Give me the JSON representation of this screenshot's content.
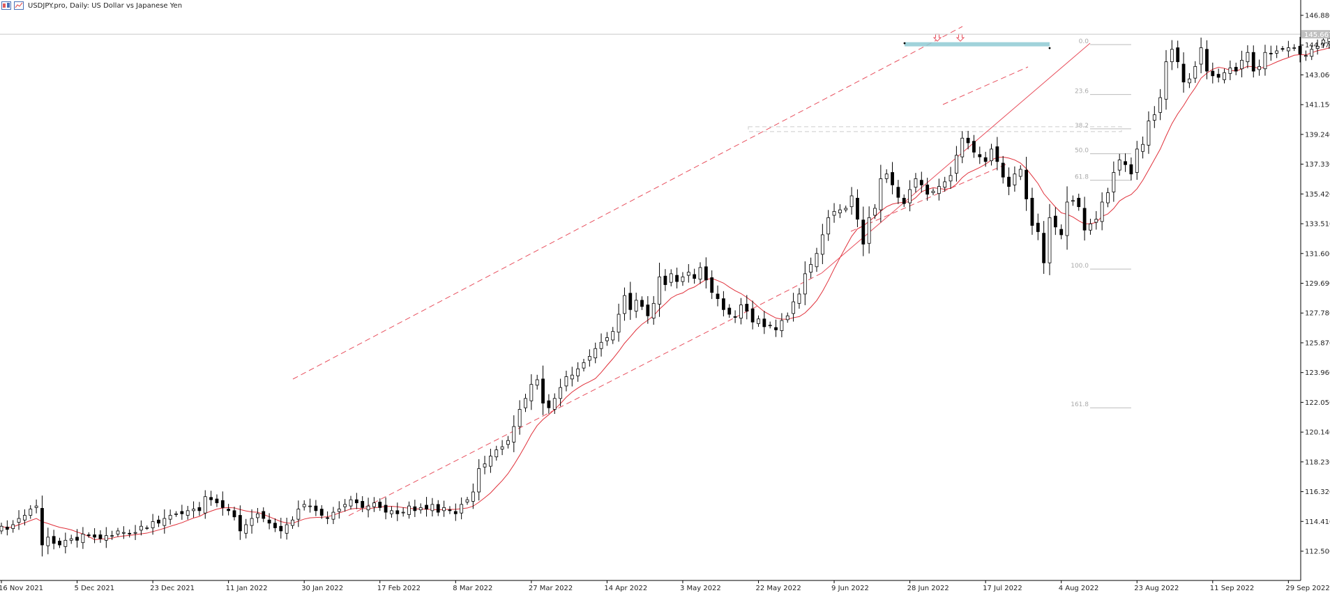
{
  "header": {
    "symbol": "USDJPY.pro",
    "timeframe": "Daily",
    "description": "US Dollar vs Japanese Yen",
    "title": "USDJPY.pro, Daily:  US Dollar vs Japanese Yen"
  },
  "colors": {
    "bull_candle": "#ffffff",
    "bear_candle": "#000000",
    "moving_average": "#e0303a",
    "channel": "#e8505e",
    "fib": "#bbbbbb",
    "resistance_zone": "#8fcad3",
    "arrow": "#e8505e"
  },
  "chart_data": {
    "type": "candlestick",
    "title": "USDJPY.pro, Daily:  US Dollar vs Japanese Yen",
    "xlabel": "",
    "ylabel": "",
    "ylim": [
      111.6,
      147.8
    ],
    "y_ticks": [
      "146.880",
      "144.970",
      "143.060",
      "141.150",
      "139.240",
      "137.330",
      "135.420",
      "133.510",
      "131.600",
      "129.690",
      "127.780",
      "125.870",
      "123.960",
      "122.050",
      "120.140",
      "118.230",
      "116.320",
      "114.410",
      "112.500"
    ],
    "x_ticks": [
      "16 Nov 2021",
      "5 Dec 2021",
      "23 Dec 2021",
      "11 Jan 2022",
      "30 Jan 2022",
      "17 Feb 2022",
      "8 Mar 2022",
      "27 Mar 2022",
      "14 Apr 2022",
      "3 May 2022",
      "22 May 2022",
      "9 Jun 2022",
      "28 Jun 2022",
      "17 Jul 2022",
      "4 Aug 2022",
      "23 Aug 2022",
      "11 Sep 2022",
      "29 Sep 2022"
    ],
    "x_tick_index": [
      0,
      13,
      26,
      39,
      52,
      65,
      78,
      91,
      104,
      117,
      130,
      143,
      156,
      169,
      182,
      195,
      208,
      221
    ],
    "last_price": "145.667",
    "closes": [
      114.1,
      113.9,
      114.2,
      114.6,
      114.8,
      115.2,
      115.4,
      112.9,
      113.4,
      113.0,
      112.9,
      113.2,
      113.3,
      113.2,
      113.6,
      113.5,
      113.4,
      113.3,
      113.5,
      113.5,
      113.8,
      113.7,
      113.6,
      113.7,
      114.1,
      114.0,
      114.4,
      114.3,
      114.6,
      114.8,
      114.9,
      114.9,
      115.1,
      115.2,
      115.1,
      116.0,
      115.8,
      115.6,
      115.3,
      115.1,
      114.7,
      113.8,
      114.2,
      114.6,
      114.9,
      114.6,
      114.3,
      114.0,
      113.8,
      114.2,
      114.5,
      115.2,
      115.5,
      115.4,
      115.1,
      114.8,
      114.6,
      115.0,
      115.2,
      115.5,
      115.8,
      115.6,
      115.3,
      115.4,
      115.6,
      115.3,
      115.0,
      115.1,
      114.9,
      115.0,
      115.4,
      115.1,
      115.3,
      115.2,
      115.5,
      115.0,
      115.3,
      115.1,
      114.9,
      115.5,
      115.8,
      116.3,
      117.8,
      118.1,
      118.6,
      119.0,
      119.2,
      119.6,
      120.5,
      121.6,
      122.3,
      123.2,
      123.5,
      122.0,
      121.7,
      122.3,
      123.0,
      123.7,
      123.8,
      124.2,
      124.6,
      125.0,
      125.5,
      125.9,
      126.2,
      126.6,
      127.7,
      128.9,
      128.0,
      128.6,
      128.2,
      127.6,
      128.4,
      130.1,
      129.6,
      130.3,
      129.8,
      130.1,
      130.4,
      130.0,
      130.7,
      129.9,
      129.1,
      128.7,
      128.0,
      127.7,
      127.5,
      128.3,
      127.9,
      127.2,
      127.4,
      126.9,
      127.0,
      126.7,
      127.3,
      127.6,
      128.5,
      129.0,
      130.3,
      130.9,
      131.6,
      132.8,
      133.9,
      134.3,
      134.4,
      134.5,
      135.3,
      133.8,
      132.2,
      133.9,
      134.5,
      136.4,
      136.7,
      136.0,
      135.2,
      134.8,
      135.7,
      136.4,
      136.0,
      135.4,
      135.6,
      135.9,
      136.2,
      136.6,
      137.9,
      139.0,
      138.7,
      138.1,
      137.8,
      137.5,
      138.3,
      137.5,
      136.5,
      135.9,
      136.7,
      137.0,
      135.1,
      133.4,
      133.0,
      131.0,
      133.9,
      133.3,
      132.8,
      134.9,
      135.0,
      134.6,
      133.1,
      133.5,
      133.8,
      134.9,
      135.5,
      136.8,
      137.6,
      137.3,
      136.7,
      138.3,
      138.6,
      140.1,
      140.5,
      141.6,
      143.9,
      144.7,
      143.9,
      142.6,
      142.8,
      143.6,
      144.8,
      143.3,
      143.0,
      142.9,
      143.2,
      143.5,
      143.3,
      144.0,
      144.5,
      143.3,
      143.6,
      144.5,
      144.4,
      144.6,
      144.7,
      144.8,
      144.8,
      144.4,
      144.3,
      144.7,
      144.9,
      145.3,
      145.4,
      145.6
    ],
    "fibonacci": [
      {
        "label": "0.0",
        "price": 145.0
      },
      {
        "label": "23.6",
        "price": 141.8
      },
      {
        "label": "38.2",
        "price": 139.6
      },
      {
        "label": "50.0",
        "price": 138.0
      },
      {
        "label": "61.8",
        "price": 136.3
      },
      {
        "label": "100.0",
        "price": 130.6
      },
      {
        "label": "161.8",
        "price": 121.7
      }
    ]
  }
}
